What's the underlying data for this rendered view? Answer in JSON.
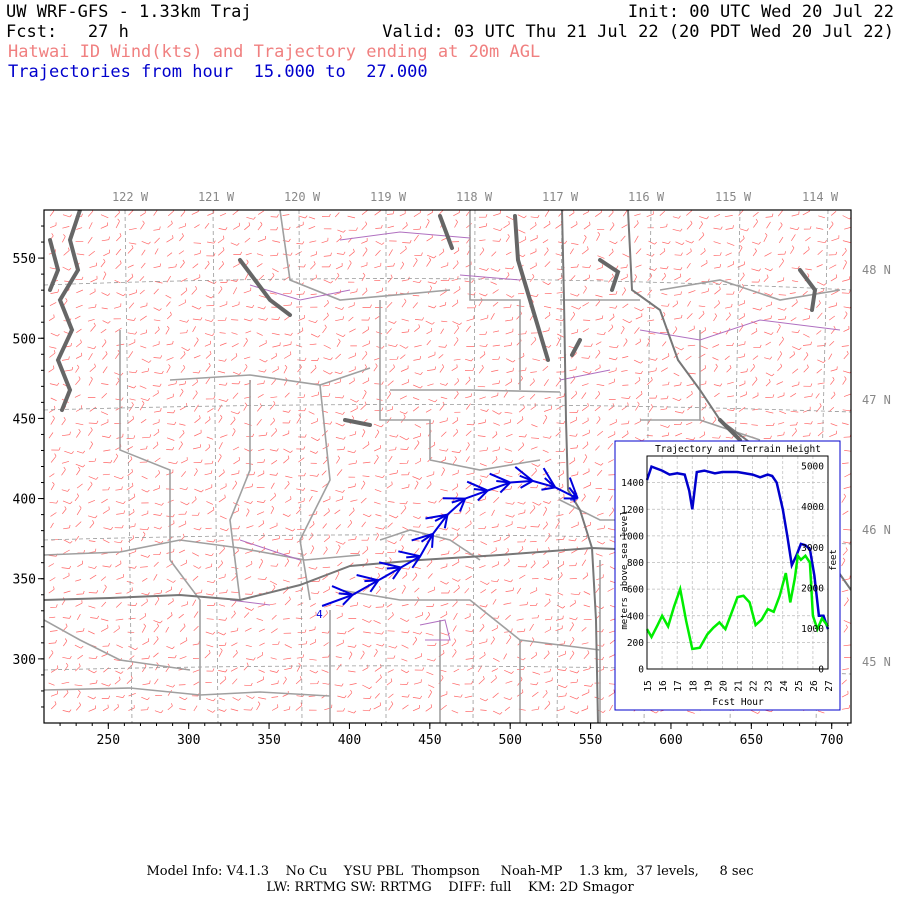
{
  "header": {
    "model": "UW WRF-GFS - 1.33km Traj",
    "init": "Init: 00 UTC Wed 20 Jul 22",
    "fcst": "Fcst:   27 h",
    "valid": "Valid: 03 UTC Thu 21 Jul 22 (20 PDT Wed 20 Jul 22)",
    "subtitle": "Hatwai ID Wind(kts) and Trajectory ending at 20m AGL",
    "traj_range": "Trajectories from hour  15.000 to  27.000"
  },
  "footer": {
    "line1": "Model Info: V4.1.3    No Cu    YSU PBL  Thompson     Noah-MP    1.3 km,  37 levels,     8 sec",
    "line2": "LW: RRTMG SW: RRTMG    DIFF: full    KM: 2D Smagor"
  },
  "colors": {
    "wind_barb": "#ff6666",
    "trajectory": "#0000dd",
    "terrain": "#00ee00",
    "height": "#0000cc",
    "borders": "#a0a0a0",
    "state_lines": "#777777",
    "water": "#666666",
    "county_lines": "#b070c0"
  },
  "chart_data": [
    {
      "type": "line",
      "title": "",
      "xlabel": "",
      "ylabel": "",
      "x_ticks": [
        250,
        300,
        350,
        400,
        450,
        500,
        550,
        600,
        650,
        700
      ],
      "y_ticks": [
        300,
        350,
        400,
        450,
        500,
        550
      ],
      "xlim": [
        210,
        712
      ],
      "ylim": [
        260,
        580
      ],
      "lon_labels": [
        "122 W",
        "121 W",
        "120 W",
        "119 W",
        "118 W",
        "117 W",
        "116 W",
        "115 W",
        "114 W"
      ],
      "lat_labels": [
        "48 N",
        "47 N",
        "46 N",
        "45 N"
      ],
      "trajectory_marker": "4",
      "trajectory": [
        {
          "x": 383,
          "y": 333
        },
        {
          "x": 402,
          "y": 340
        },
        {
          "x": 418,
          "y": 349
        },
        {
          "x": 432,
          "y": 357
        },
        {
          "x": 444,
          "y": 364
        },
        {
          "x": 452,
          "y": 378
        },
        {
          "x": 461,
          "y": 390
        },
        {
          "x": 472,
          "y": 400
        },
        {
          "x": 486,
          "y": 405
        },
        {
          "x": 500,
          "y": 410
        },
        {
          "x": 514,
          "y": 411
        },
        {
          "x": 528,
          "y": 407
        },
        {
          "x": 542,
          "y": 400
        }
      ]
    },
    {
      "type": "line",
      "title": "Trajectory and Terrain Height",
      "xlabel": "Fcst Hour",
      "ylabel": "meters above sea level",
      "ylabel_right": "feet",
      "xlim": [
        15,
        27
      ],
      "ylim": [
        0,
        1600
      ],
      "x_ticks": [
        15,
        16,
        17,
        18,
        19,
        20,
        21,
        22,
        23,
        24,
        25,
        26,
        27
      ],
      "y_ticks": [
        0,
        200,
        400,
        600,
        800,
        1000,
        1200,
        1400
      ],
      "y_ticks_right": [
        0,
        1000,
        2000,
        3000,
        4000,
        5000
      ],
      "series": [
        {
          "name": "",
          "color": "#0000cc",
          "x": [
            15.0,
            15.3,
            16.0,
            16.5,
            17.0,
            17.5,
            17.8,
            18.0,
            18.3,
            18.8,
            19.5,
            20.0,
            21.0,
            22.0,
            22.5,
            23.0,
            23.3,
            23.6,
            24.0,
            24.3,
            24.6,
            24.9,
            25.2,
            25.5,
            25.8,
            26.1,
            26.4,
            26.7,
            27.0
          ],
          "values": [
            1420,
            1520,
            1490,
            1460,
            1470,
            1460,
            1340,
            1200,
            1480,
            1490,
            1470,
            1480,
            1480,
            1460,
            1440,
            1460,
            1450,
            1400,
            1200,
            1000,
            780,
            850,
            940,
            930,
            900,
            700,
            400,
            400,
            300
          ]
        },
        {
          "name": "",
          "color": "#00ee00",
          "x": [
            15.0,
            15.3,
            15.7,
            16.0,
            16.4,
            16.8,
            17.2,
            17.6,
            18.0,
            18.5,
            19.0,
            19.4,
            19.8,
            20.2,
            20.6,
            21.0,
            21.4,
            21.8,
            22.2,
            22.6,
            23.0,
            23.4,
            23.8,
            24.2,
            24.5,
            24.8,
            25.0,
            25.2,
            25.5,
            25.8,
            26.0,
            26.3,
            26.6,
            27.0
          ],
          "values": [
            300,
            240,
            330,
            400,
            320,
            470,
            600,
            360,
            150,
            160,
            260,
            310,
            350,
            300,
            420,
            540,
            550,
            500,
            330,
            370,
            450,
            430,
            550,
            720,
            500,
            680,
            850,
            820,
            850,
            800,
            400,
            300,
            380,
            320
          ]
        }
      ]
    }
  ]
}
